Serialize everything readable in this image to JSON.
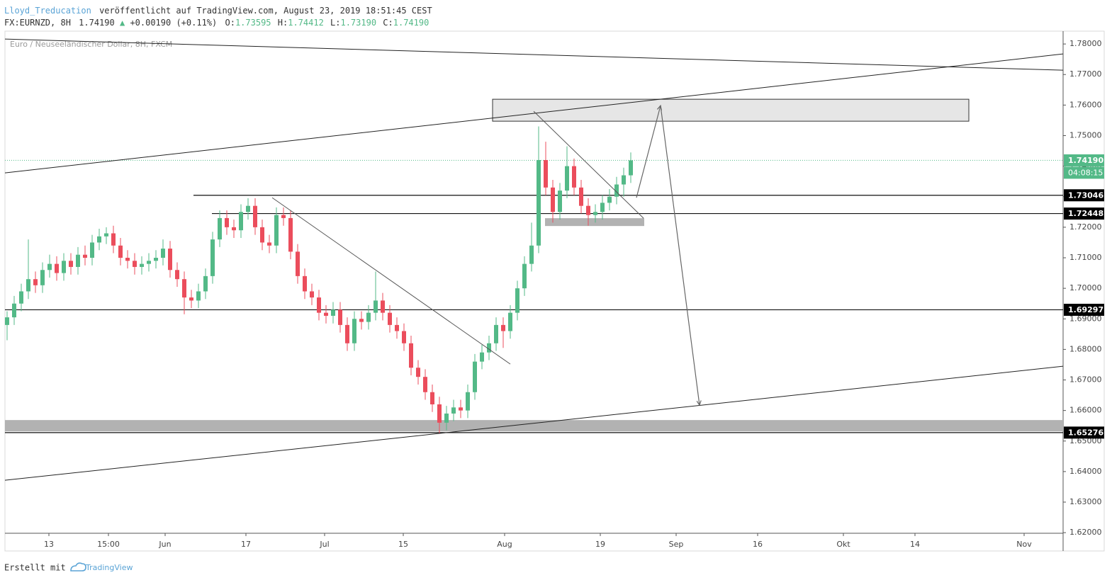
{
  "header": {
    "author": "Lloyd_Treducation",
    "published": "veröffentlicht auf TradingView.com, August 23, 2019 18:51:45 CEST",
    "symbol": "FX:EURNZD, 8H",
    "last": "1.74190",
    "arrow": "▲",
    "change": "+0.00190 (+0.11%)",
    "ohlc": [
      {
        "label": "O:",
        "value": "1.73595"
      },
      {
        "label": "H:",
        "value": "1.74412"
      },
      {
        "label": "L:",
        "value": "1.73190"
      },
      {
        "label": "C:",
        "value": "1.74190"
      }
    ]
  },
  "chart_data": {
    "type": "candlestick",
    "title": "Euro / Neuseeländischer Dollar, 8H, FXCM",
    "up_color": "#53b987",
    "down_color": "#eb4d5c",
    "ylim": [
      1.6198,
      1.7842
    ],
    "yticks": [
      {
        "value": 1.62,
        "label": "1.62000"
      },
      {
        "value": 1.63,
        "label": "1.63000"
      },
      {
        "value": 1.64,
        "label": "1.64000"
      },
      {
        "value": 1.65,
        "label": "1.65000"
      },
      {
        "value": 1.66,
        "label": "1.66000"
      },
      {
        "value": 1.67,
        "label": "1.67000"
      },
      {
        "value": 1.68,
        "label": "1.68000"
      },
      {
        "value": 1.69,
        "label": "1.69000"
      },
      {
        "value": 1.7,
        "label": "1.70000"
      },
      {
        "value": 1.71,
        "label": "1.71000"
      },
      {
        "value": 1.72,
        "label": "1.72000"
      },
      {
        "value": 1.73,
        "label": "1.73000"
      },
      {
        "value": 1.74,
        "label": "1.74000"
      },
      {
        "value": 1.75,
        "label": "1.75000"
      },
      {
        "value": 1.76,
        "label": "1.76000"
      },
      {
        "value": 1.77,
        "label": "1.77000"
      },
      {
        "value": 1.78,
        "label": "1.78000"
      }
    ],
    "xlim": [
      -0.3,
      149
    ],
    "xticks": [
      {
        "value": 5.9,
        "label": "13"
      },
      {
        "value": 14.3,
        "label": "15:00"
      },
      {
        "value": 22.3,
        "label": "Jun"
      },
      {
        "value": 33.7,
        "label": "17"
      },
      {
        "value": 44.8,
        "label": "Jul"
      },
      {
        "value": 55.9,
        "label": "15"
      },
      {
        "value": 70.2,
        "label": "Aug"
      },
      {
        "value": 83.7,
        "label": "19"
      },
      {
        "value": 94.4,
        "label": "Sep"
      },
      {
        "value": 105.9,
        "label": "16"
      },
      {
        "value": 118,
        "label": "Okt"
      },
      {
        "value": 128.1,
        "label": "14"
      },
      {
        "value": 143.5,
        "label": "Nov"
      }
    ],
    "candles": [
      [
        1.688,
        1.6925,
        1.683,
        1.6905
      ],
      [
        1.6905,
        1.6975,
        1.688,
        1.695
      ],
      [
        1.695,
        1.7015,
        1.6925,
        1.699
      ],
      [
        1.699,
        1.716,
        1.6965,
        1.703
      ],
      [
        1.703,
        1.7055,
        1.6985,
        1.701
      ],
      [
        1.701,
        1.7085,
        1.6985,
        1.706
      ],
      [
        1.706,
        1.711,
        1.7035,
        1.708
      ],
      [
        1.708,
        1.7105,
        1.7025,
        1.705
      ],
      [
        1.705,
        1.7115,
        1.7025,
        1.709
      ],
      [
        1.709,
        1.7115,
        1.7045,
        1.707
      ],
      [
        1.707,
        1.7135,
        1.7045,
        1.711
      ],
      [
        1.711,
        1.714,
        1.7075,
        1.71
      ],
      [
        1.71,
        1.7175,
        1.7075,
        1.715
      ],
      [
        1.715,
        1.7195,
        1.7125,
        1.717
      ],
      [
        1.717,
        1.72,
        1.7145,
        1.718
      ],
      [
        1.718,
        1.7205,
        1.7115,
        1.714
      ],
      [
        1.714,
        1.7165,
        1.7075,
        1.71
      ],
      [
        1.71,
        1.7125,
        1.7065,
        1.709
      ],
      [
        1.709,
        1.7115,
        1.7045,
        1.707
      ],
      [
        1.707,
        1.7105,
        1.7045,
        1.708
      ],
      [
        1.708,
        1.7115,
        1.7055,
        1.709
      ],
      [
        1.709,
        1.7125,
        1.7065,
        1.71
      ],
      [
        1.71,
        1.716,
        1.7075,
        1.713
      ],
      [
        1.713,
        1.7155,
        1.7035,
        1.706
      ],
      [
        1.706,
        1.7085,
        1.7005,
        1.703
      ],
      [
        1.703,
        1.7055,
        1.6915,
        1.697
      ],
      [
        1.697,
        1.6995,
        1.6935,
        1.696
      ],
      [
        1.696,
        1.7015,
        1.6935,
        1.699
      ],
      [
        1.699,
        1.7065,
        1.6965,
        1.704
      ],
      [
        1.704,
        1.7185,
        1.7015,
        1.716
      ],
      [
        1.716,
        1.7255,
        1.7135,
        1.723
      ],
      [
        1.723,
        1.7255,
        1.7175,
        1.72
      ],
      [
        1.72,
        1.7225,
        1.7165,
        1.719
      ],
      [
        1.719,
        1.7275,
        1.7165,
        1.725
      ],
      [
        1.725,
        1.7295,
        1.7225,
        1.727
      ],
      [
        1.727,
        1.7295,
        1.7175,
        1.72
      ],
      [
        1.72,
        1.7225,
        1.7125,
        1.715
      ],
      [
        1.715,
        1.7175,
        1.7115,
        1.714
      ],
      [
        1.714,
        1.7265,
        1.7115,
        1.724
      ],
      [
        1.724,
        1.7265,
        1.7205,
        1.723
      ],
      [
        1.723,
        1.7255,
        1.7095,
        1.712
      ],
      [
        1.712,
        1.7145,
        1.7015,
        1.704
      ],
      [
        1.704,
        1.7065,
        1.6965,
        1.699
      ],
      [
        1.699,
        1.7015,
        1.6945,
        1.697
      ],
      [
        1.697,
        1.6995,
        1.6895,
        1.692
      ],
      [
        1.692,
        1.6945,
        1.6885,
        1.691
      ],
      [
        1.691,
        1.6955,
        1.6885,
        1.693
      ],
      [
        1.693,
        1.6955,
        1.6855,
        1.688
      ],
      [
        1.688,
        1.6905,
        1.6795,
        1.682
      ],
      [
        1.682,
        1.6925,
        1.6795,
        1.69
      ],
      [
        1.69,
        1.6925,
        1.6865,
        1.689
      ],
      [
        1.689,
        1.6945,
        1.6865,
        1.692
      ],
      [
        1.692,
        1.7055,
        1.6895,
        1.696
      ],
      [
        1.696,
        1.6985,
        1.6895,
        1.692
      ],
      [
        1.692,
        1.6945,
        1.6855,
        1.688
      ],
      [
        1.688,
        1.6905,
        1.6835,
        1.686
      ],
      [
        1.686,
        1.6885,
        1.6795,
        1.682
      ],
      [
        1.682,
        1.6845,
        1.6715,
        1.674
      ],
      [
        1.674,
        1.6765,
        1.6685,
        1.671
      ],
      [
        1.671,
        1.6735,
        1.6635,
        1.666
      ],
      [
        1.666,
        1.6685,
        1.6595,
        1.662
      ],
      [
        1.662,
        1.6645,
        1.6525,
        1.656
      ],
      [
        1.656,
        1.6615,
        1.6535,
        1.659
      ],
      [
        1.659,
        1.6635,
        1.6565,
        1.661
      ],
      [
        1.661,
        1.6635,
        1.6575,
        1.66
      ],
      [
        1.66,
        1.6685,
        1.6575,
        1.666
      ],
      [
        1.666,
        1.6785,
        1.6635,
        1.676
      ],
      [
        1.676,
        1.6815,
        1.6735,
        1.679
      ],
      [
        1.679,
        1.6845,
        1.6765,
        1.682
      ],
      [
        1.682,
        1.6905,
        1.6795,
        1.688
      ],
      [
        1.688,
        1.6905,
        1.6805,
        1.686
      ],
      [
        1.686,
        1.6945,
        1.6835,
        1.692
      ],
      [
        1.692,
        1.7025,
        1.6895,
        1.7
      ],
      [
        1.7,
        1.7105,
        1.6975,
        1.708
      ],
      [
        1.708,
        1.7215,
        1.7055,
        1.714
      ],
      [
        1.714,
        1.753,
        1.7115,
        1.742
      ],
      [
        1.742,
        1.748,
        1.7305,
        1.733
      ],
      [
        1.733,
        1.7355,
        1.7215,
        1.725
      ],
      [
        1.725,
        1.7345,
        1.7225,
        1.732
      ],
      [
        1.732,
        1.7465,
        1.7295,
        1.74
      ],
      [
        1.74,
        1.7425,
        1.7305,
        1.733
      ],
      [
        1.733,
        1.7355,
        1.7245,
        1.727
      ],
      [
        1.727,
        1.7295,
        1.7205,
        1.724
      ],
      [
        1.724,
        1.7275,
        1.7215,
        1.725
      ],
      [
        1.725,
        1.7305,
        1.7225,
        1.728
      ],
      [
        1.728,
        1.7325,
        1.7255,
        1.73
      ],
      [
        1.73,
        1.7365,
        1.7275,
        1.734
      ],
      [
        1.734,
        1.7395,
        1.73,
        1.737
      ],
      [
        1.737,
        1.7445,
        1.7345,
        1.7419
      ]
    ],
    "last_price": {
      "value": 1.7419,
      "label": "1.74190",
      "countdown": "04:08:15",
      "color": "#53b987"
    },
    "levels": [
      {
        "value": 1.73046,
        "label": "1.73046",
        "from": 26.3
      },
      {
        "value": 1.72448,
        "label": "1.72448",
        "from": 28.9
      },
      {
        "value": 1.69297,
        "label": "1.69297",
        "from": -0.3
      },
      {
        "value": 1.65276,
        "label": "1.65276",
        "from": -0.3
      }
    ],
    "zones": [
      {
        "x": [
          68.5,
          135.7
        ],
        "y": [
          1.75472,
          1.76191
        ],
        "color": "#e6e6e6"
      },
      {
        "x": [
          75.9,
          89.9
        ],
        "y": [
          1.7204,
          1.72296
        ],
        "color": "#b2b2b2"
      },
      {
        "x": [
          -0.3,
          149
        ],
        "y": [
          1.65316,
          1.65687
        ],
        "color": "#b2b2b2"
      }
    ],
    "trendlines": [
      [
        [
          -0.3,
          1.78162
        ],
        [
          149,
          1.77142
        ]
      ],
      [
        [
          -0.3,
          1.7378
        ],
        [
          149,
          1.77675
        ]
      ],
      [
        [
          -0.3,
          1.63716
        ],
        [
          149,
          1.67449
        ]
      ],
      [
        [
          37.4,
          1.72968
        ],
        [
          71,
          1.67519
        ]
      ],
      [
        [
          74.3,
          1.75797
        ],
        [
          89.8,
          1.72296
        ]
      ]
    ],
    "arrow": [
      [
        88.8,
        1.72968
      ],
      [
        92.2,
        1.75983
      ],
      [
        97.7,
        1.66174
      ]
    ]
  },
  "footer": {
    "text": "Erstellt mit",
    "brand": "TradingView"
  }
}
